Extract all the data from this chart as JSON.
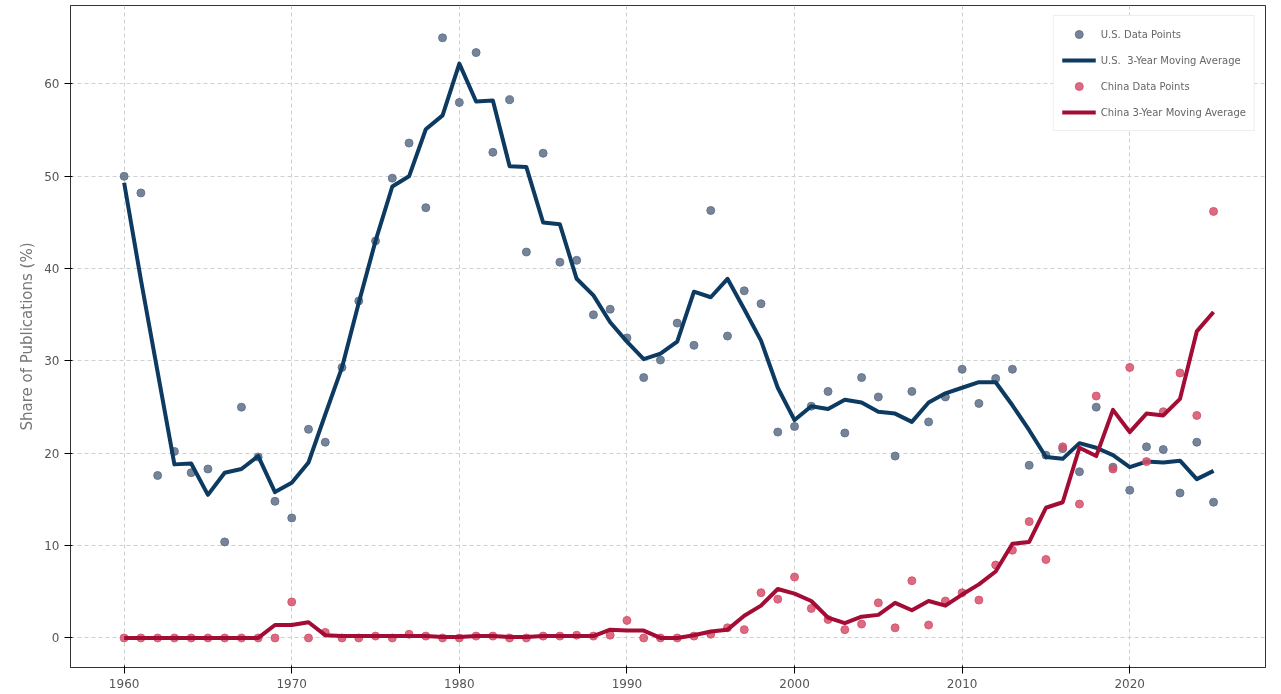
{
  "chart_data": {
    "type": "line",
    "ylabel": "Share of Publications (%)",
    "xlim": [
      1956.8,
      2028.1
    ],
    "ylim": [
      -3.2,
      68.5
    ],
    "xticks": [
      1960,
      1970,
      1980,
      1990,
      2000,
      2010,
      2020
    ],
    "yticks": [
      0,
      10,
      20,
      30,
      40,
      50,
      60
    ],
    "grid": true,
    "legend": "top right",
    "line_style": "solid",
    "x": [
      1960,
      1961,
      1962,
      1963,
      1964,
      1965,
      1966,
      1967,
      1968,
      1969,
      1970,
      1971,
      1972,
      1973,
      1974,
      1975,
      1976,
      1977,
      1978,
      1979,
      1980,
      1981,
      1982,
      1983,
      1984,
      1985,
      1986,
      1987,
      1988,
      1989,
      1990,
      1991,
      1992,
      1993,
      1994,
      1995,
      1996,
      1997,
      1998,
      1999,
      2000,
      2001,
      2002,
      2003,
      2004,
      2005,
      2006,
      2007,
      2008,
      2009,
      2010,
      2011,
      2012,
      2013,
      2014,
      2015,
      2016,
      2017,
      2018,
      2019,
      2020,
      2021,
      2022,
      2023,
      2024,
      2025
    ],
    "series": [
      {
        "name": "U.S. Data Points",
        "type": "scatter",
        "marker": "circle",
        "color": "#5d6f87",
        "values": [
          50.0,
          48.2,
          17.6,
          20.2,
          17.9,
          18.3,
          10.4,
          25.0,
          19.6,
          14.8,
          13.0,
          22.6,
          21.2,
          29.3,
          36.5,
          43.0,
          49.8,
          53.6,
          46.6,
          65.0,
          58.0,
          63.4,
          52.6,
          58.3,
          41.8,
          52.5,
          40.7,
          40.9,
          35.0,
          35.6,
          32.5,
          28.2,
          30.1,
          34.1,
          31.7,
          46.3,
          32.7,
          37.6,
          36.2,
          22.3,
          22.9,
          25.1,
          26.7,
          22.2,
          28.2,
          26.1,
          19.7,
          26.7,
          23.4,
          26.1,
          29.1,
          25.4,
          28.1,
          29.1,
          18.7,
          19.8,
          20.5,
          18.0,
          25.0,
          18.5,
          16.0,
          20.7,
          20.4,
          15.7,
          21.2,
          14.7
        ]
      },
      {
        "name": "U.S.  3-Year Moving Average",
        "color": "#0d3a61",
        "values": [
          49.3,
          38.8,
          28.8,
          18.8,
          18.9,
          15.5,
          17.9,
          18.3,
          19.7,
          15.8,
          16.8,
          19.0,
          24.2,
          29.3,
          36.3,
          43.0,
          48.9,
          50.0,
          55.1,
          56.6,
          62.2,
          58.1,
          58.2,
          51.1,
          51.0,
          45.0,
          44.8,
          38.9,
          37.1,
          34.2,
          32.1,
          30.2,
          30.8,
          32.1,
          37.5,
          36.9,
          38.9,
          35.6,
          32.2,
          27.1,
          23.6,
          25.1,
          24.8,
          25.8,
          25.5,
          24.5,
          24.3,
          23.4,
          25.5,
          26.5,
          27.1,
          27.7,
          27.7,
          25.2,
          22.5,
          19.6,
          19.4,
          21.1,
          20.6,
          19.8,
          18.5,
          19.1,
          19.0,
          19.2,
          17.2,
          18.1
        ]
      },
      {
        "name": "China Data Points",
        "type": "scatter",
        "marker": "circle",
        "color": "#d6506a",
        "values": [
          0,
          0,
          0,
          0,
          0,
          0,
          0,
          0,
          0,
          0,
          3.9,
          0,
          0.6,
          0,
          0,
          0.2,
          0,
          0.4,
          0.2,
          0,
          0,
          0.2,
          0.2,
          0,
          0,
          0.2,
          0.2,
          0.3,
          0.2,
          0.3,
          1.9,
          0,
          0,
          0,
          0.2,
          0.4,
          1.1,
          0.9,
          4.9,
          4.2,
          6.6,
          3.2,
          2.0,
          0.9,
          1.5,
          3.8,
          1.1,
          6.2,
          1.4,
          4.0,
          4.9,
          4.1,
          7.9,
          9.5,
          12.6,
          8.5,
          20.7,
          14.5,
          26.2,
          18.3,
          29.3,
          19.1,
          24.5,
          28.7,
          24.1,
          46.2
        ]
      },
      {
        "name": "China 3-Year Moving Average",
        "color": "#a30d35",
        "values": [
          0,
          0,
          0,
          0,
          0,
          0,
          0,
          0,
          0,
          1.4,
          1.4,
          1.7,
          0.3,
          0.2,
          0.2,
          0.2,
          0.2,
          0.2,
          0.2,
          0.1,
          0.1,
          0.2,
          0.2,
          0.1,
          0.1,
          0.2,
          0.2,
          0.2,
          0.2,
          0.9,
          0.8,
          0.8,
          0,
          0,
          0.3,
          0.7,
          0.9,
          2.4,
          3.5,
          5.3,
          4.8,
          4.0,
          2.2,
          1.6,
          2.3,
          2.5,
          3.8,
          3.0,
          4.0,
          3.5,
          4.7,
          5.8,
          7.2,
          10.2,
          10.4,
          14.1,
          14.7,
          20.6,
          19.7,
          24.7,
          22.3,
          24.3,
          24.1,
          25.9,
          33.2,
          35.3
        ]
      }
    ]
  }
}
